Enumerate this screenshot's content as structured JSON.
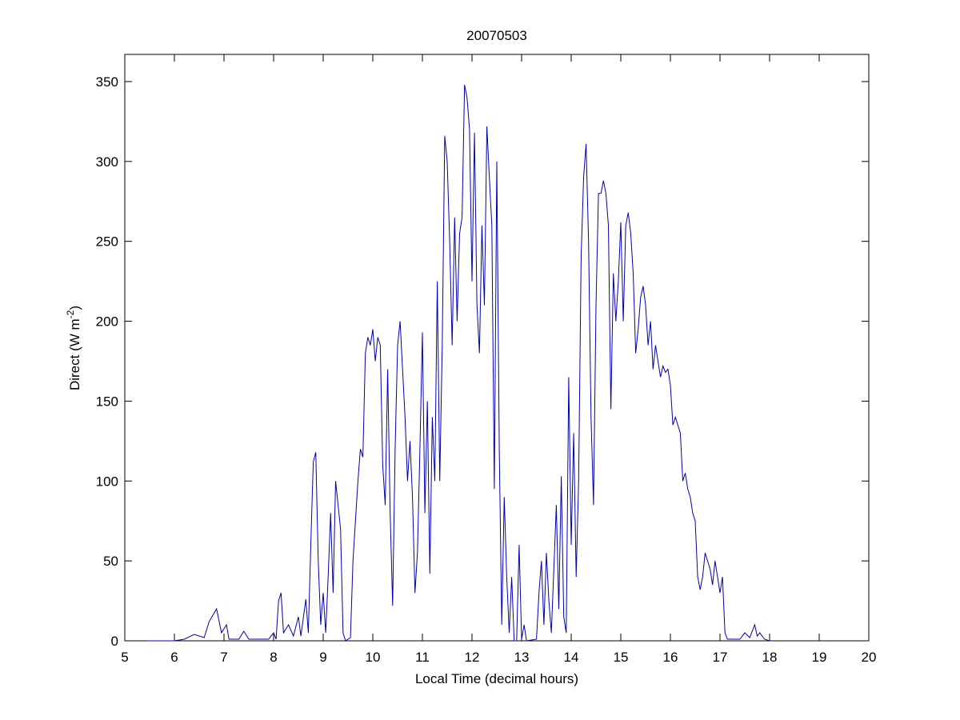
{
  "chart_data": {
    "type": "line",
    "title": "20070503",
    "xlabel": "Local Time (decimal hours)",
    "ylabel": [
      "Direct (W m",
      "-2",
      ")"
    ],
    "xlim": [
      5,
      20
    ],
    "xticks": [
      5,
      6,
      7,
      8,
      9,
      10,
      11,
      12,
      13,
      14,
      15,
      16,
      17,
      18,
      19,
      20
    ],
    "ylim": [
      0,
      367
    ],
    "yticks": [
      0,
      50,
      100,
      150,
      200,
      250,
      300,
      350
    ],
    "grid": false,
    "x": [
      5.45,
      6.0,
      6.2,
      6.4,
      6.6,
      6.7,
      6.85,
      6.95,
      7.05,
      7.1,
      7.3,
      7.4,
      7.5,
      7.9,
      8.0,
      8.05,
      8.1,
      8.15,
      8.2,
      8.3,
      8.4,
      8.5,
      8.55,
      8.65,
      8.7,
      8.75,
      8.8,
      8.85,
      8.9,
      8.95,
      9.0,
      9.05,
      9.1,
      9.15,
      9.2,
      9.25,
      9.3,
      9.35,
      9.4,
      9.45,
      9.55,
      9.6,
      9.7,
      9.75,
      9.8,
      9.85,
      9.9,
      9.95,
      10.0,
      10.05,
      10.1,
      10.15,
      10.2,
      10.25,
      10.3,
      10.35,
      10.4,
      10.45,
      10.5,
      10.55,
      10.6,
      10.65,
      10.7,
      10.75,
      10.8,
      10.85,
      10.9,
      10.95,
      11.0,
      11.05,
      11.1,
      11.15,
      11.2,
      11.25,
      11.3,
      11.35,
      11.4,
      11.45,
      11.5,
      11.55,
      11.6,
      11.65,
      11.7,
      11.75,
      11.8,
      11.85,
      11.9,
      11.95,
      12.0,
      12.05,
      12.1,
      12.15,
      12.2,
      12.25,
      12.3,
      12.35,
      12.4,
      12.45,
      12.5,
      12.55,
      12.6,
      12.65,
      12.7,
      12.75,
      12.8,
      12.85,
      12.9,
      12.95,
      13.0,
      13.05,
      13.1,
      13.3,
      13.35,
      13.4,
      13.45,
      13.5,
      13.55,
      13.6,
      13.7,
      13.75,
      13.8,
      13.85,
      13.9,
      13.95,
      14.0,
      14.05,
      14.1,
      14.15,
      14.2,
      14.25,
      14.3,
      14.35,
      14.4,
      14.45,
      14.5,
      14.55,
      14.6,
      14.65,
      14.7,
      14.75,
      14.8,
      14.85,
      14.9,
      14.95,
      15.0,
      15.05,
      15.1,
      15.15,
      15.2,
      15.25,
      15.3,
      15.35,
      15.4,
      15.45,
      15.5,
      15.55,
      15.6,
      15.65,
      15.7,
      15.75,
      15.8,
      15.85,
      15.9,
      15.95,
      16.0,
      16.05,
      16.1,
      16.15,
      16.2,
      16.25,
      16.3,
      16.35,
      16.4,
      16.45,
      16.5,
      16.55,
      16.6,
      16.65,
      16.7,
      16.75,
      16.8,
      16.85,
      16.9,
      16.95,
      17.0,
      17.05,
      17.1,
      17.15,
      17.4,
      17.5,
      17.6,
      17.7,
      17.75,
      17.8,
      17.9,
      18.0
    ],
    "series": [
      {
        "color": "#0000b0",
        "values": [
          0,
          0,
          1,
          4,
          2,
          12,
          20,
          5,
          10,
          1,
          1,
          6,
          1,
          1,
          5,
          1,
          25,
          30,
          5,
          10,
          3,
          15,
          3,
          26,
          5,
          60,
          112,
          118,
          50,
          10,
          30,
          5,
          40,
          80,
          30,
          100,
          85,
          70,
          5,
          0,
          2,
          50,
          100,
          120,
          115,
          180,
          190,
          185,
          195,
          175,
          190,
          185,
          110,
          85,
          170,
          80,
          22,
          120,
          185,
          200,
          170,
          140,
          100,
          125,
          90,
          30,
          55,
          120,
          193,
          80,
          150,
          42,
          140,
          100,
          225,
          100,
          185,
          316,
          300,
          250,
          185,
          265,
          200,
          255,
          265,
          348,
          340,
          320,
          225,
          318,
          210,
          180,
          260,
          210,
          322,
          290,
          260,
          95,
          300,
          120,
          10,
          90,
          40,
          5,
          40,
          0,
          0,
          60,
          1,
          10,
          0,
          1,
          30,
          50,
          10,
          55,
          25,
          5,
          85,
          20,
          103,
          15,
          5,
          165,
          60,
          130,
          40,
          100,
          240,
          290,
          311,
          250,
          140,
          85,
          210,
          280,
          280,
          288,
          280,
          260,
          145,
          230,
          200,
          225,
          262,
          200,
          260,
          268,
          255,
          230,
          180,
          195,
          215,
          222,
          210,
          185,
          200,
          170,
          185,
          175,
          165,
          172,
          168,
          170,
          160,
          135,
          140,
          135,
          130,
          100,
          105,
          95,
          90,
          80,
          75,
          40,
          32,
          40,
          55,
          50,
          45,
          35,
          50,
          40,
          30,
          40,
          5,
          1,
          1,
          5,
          2,
          10,
          3,
          5,
          1,
          0
        ]
      }
    ]
  }
}
